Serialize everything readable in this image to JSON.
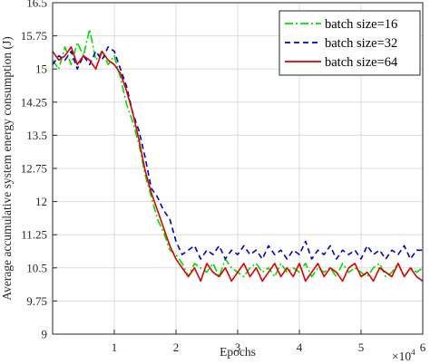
{
  "chart_data": {
    "type": "line",
    "xlabel": "Epochs",
    "ylabel": "Average accumulative system energy consumption (J)",
    "x_exponent_label": "×10",
    "x_exponent_power": "4",
    "xlim": [
      0,
      60000
    ],
    "ylim": [
      9,
      16.5
    ],
    "x_ticks": [
      10000,
      20000,
      30000,
      40000,
      50000,
      60000
    ],
    "x_tick_labels": [
      "1",
      "2",
      "3",
      "4",
      "5",
      "6"
    ],
    "y_ticks": [
      9,
      9.75,
      10.5,
      11.25,
      12,
      12.75,
      13.5,
      14.25,
      15,
      15.75,
      16.5
    ],
    "y_tick_labels": [
      "9",
      "9.75",
      "10.5",
      "11.25",
      "12",
      "12.75",
      "13.5",
      "14.25",
      "15",
      "15.75",
      "16.5"
    ],
    "grid": true,
    "legend_position": "top-right",
    "x": [
      0,
      1000,
      2000,
      3000,
      4000,
      5000,
      6000,
      7000,
      8000,
      9000,
      10000,
      11000,
      12000,
      13000,
      14000,
      15000,
      16000,
      17000,
      18000,
      19000,
      20000,
      21000,
      22000,
      23000,
      24000,
      25000,
      26000,
      27000,
      28000,
      29000,
      30000,
      31000,
      32000,
      33000,
      34000,
      35000,
      36000,
      37000,
      38000,
      39000,
      40000,
      41000,
      42000,
      43000,
      44000,
      45000,
      46000,
      47000,
      48000,
      49000,
      50000,
      51000,
      52000,
      53000,
      54000,
      55000,
      56000,
      57000,
      58000,
      59000,
      60000
    ],
    "series": [
      {
        "name": "batch size=16",
        "color": "#00dd00",
        "dash": "9 3 2 3",
        "values": [
          15.2,
          15.0,
          15.5,
          15.1,
          15.6,
          15.3,
          15.9,
          15.2,
          15.4,
          15.1,
          15.3,
          14.8,
          14.2,
          13.8,
          13.3,
          12.6,
          12.1,
          11.6,
          11.3,
          10.9,
          10.8,
          10.6,
          10.3,
          10.6,
          10.5,
          10.4,
          10.6,
          10.3,
          10.7,
          10.5,
          10.4,
          10.3,
          10.5,
          10.6,
          10.4,
          10.5,
          10.3,
          10.6,
          10.4,
          10.5,
          10.4,
          10.6,
          10.3,
          10.5,
          10.4,
          10.5,
          10.3,
          10.6,
          10.4,
          10.5,
          10.4,
          10.3,
          10.5,
          10.6,
          10.3,
          10.4,
          10.6,
          10.3,
          10.5,
          10.4,
          10.5
        ]
      },
      {
        "name": "batch size=32",
        "color": "#0000cc",
        "dash": "6 4",
        "values": [
          15.1,
          15.3,
          15.2,
          15.4,
          15.0,
          15.3,
          15.1,
          15.4,
          15.2,
          15.5,
          15.4,
          15.0,
          14.6,
          14.0,
          13.6,
          13.0,
          12.3,
          12.1,
          11.8,
          11.6,
          11.1,
          10.8,
          10.9,
          11.0,
          10.7,
          10.9,
          10.8,
          11.0,
          10.7,
          10.9,
          10.8,
          11.0,
          10.8,
          10.9,
          10.7,
          11.0,
          10.8,
          10.9,
          10.7,
          10.9,
          10.8,
          11.1,
          10.7,
          10.9,
          10.8,
          11.0,
          10.7,
          10.9,
          10.8,
          10.9,
          10.7,
          11.0,
          10.8,
          10.9,
          10.7,
          10.9,
          10.8,
          11.0,
          10.7,
          10.9,
          10.9
        ]
      },
      {
        "name": "batch size=64",
        "color": "#dd0000",
        "dash": "",
        "values": [
          15.4,
          15.2,
          15.3,
          15.5,
          15.1,
          15.3,
          15.2,
          15.0,
          15.4,
          15.2,
          15.1,
          14.9,
          14.5,
          14.0,
          13.4,
          12.7,
          12.2,
          11.8,
          11.4,
          11.0,
          10.7,
          10.5,
          10.3,
          10.5,
          10.2,
          10.6,
          10.4,
          10.3,
          10.5,
          10.2,
          10.4,
          10.6,
          10.3,
          10.5,
          10.2,
          10.4,
          10.6,
          10.3,
          10.5,
          10.3,
          10.6,
          10.2,
          10.4,
          10.6,
          10.3,
          10.5,
          10.4,
          10.2,
          10.5,
          10.6,
          10.3,
          10.4,
          10.2,
          10.5,
          10.4,
          10.3,
          10.6,
          10.3,
          10.5,
          10.3,
          10.2
        ]
      }
    ]
  }
}
